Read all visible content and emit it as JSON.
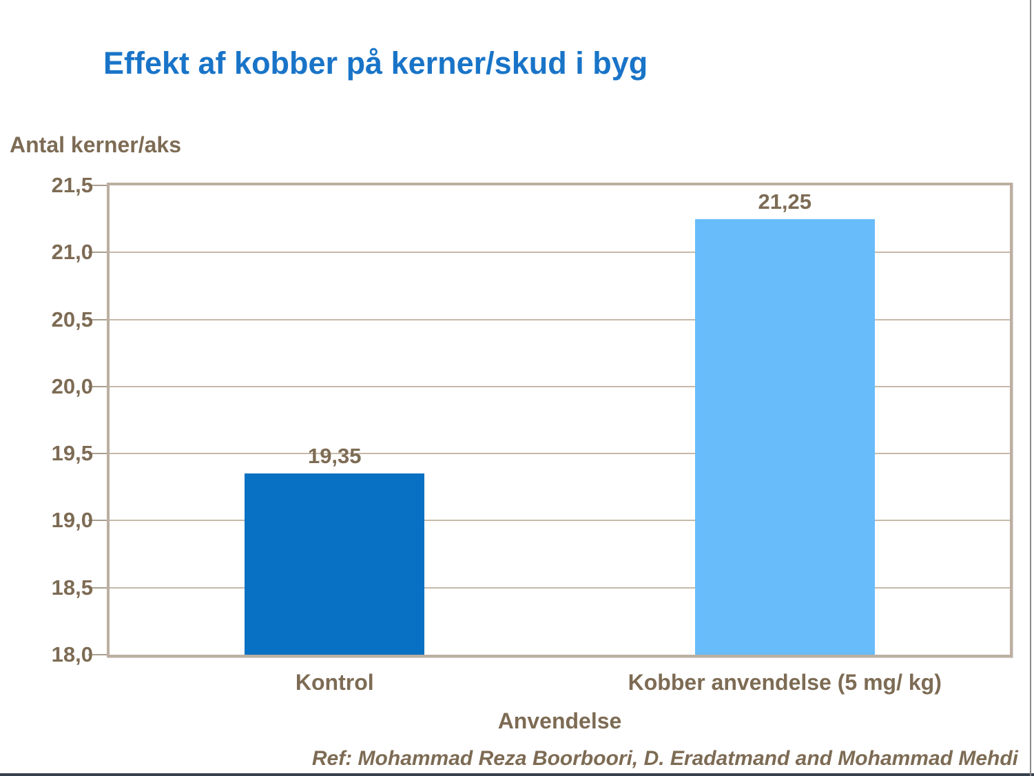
{
  "slide": {
    "title": "Effekt af kobber på kerner/skud i byg",
    "ref_text": "Ref: Mohammad Reza Boorboori, D. Eradatmand and Mohammad Mehdi"
  },
  "chart_data": {
    "type": "bar",
    "title": "Effekt af kobber på kerner/skud i byg",
    "xlabel": "Anvendelse",
    "ylabel": "Antal kerner/aks",
    "categories": [
      "Kontrol",
      "Kobber anvendelse (5 mg/ kg)"
    ],
    "values": [
      19.35,
      21.25
    ],
    "value_labels": [
      "19,35",
      "21,25"
    ],
    "bar_colors": [
      "#0971c3",
      "#68bcfa"
    ],
    "ylim": [
      18.0,
      21.5
    ],
    "ytick_step": 0.5,
    "yticks": [
      21.5,
      21.0,
      20.5,
      20.0,
      19.5,
      19.0,
      18.5,
      18.0
    ],
    "ytick_labels": [
      "21,5",
      "21,0",
      "20,5",
      "20,0",
      "19,5",
      "19,0",
      "18,5",
      "18,0"
    ],
    "grid": true,
    "legend": false,
    "decimal_separator": ","
  },
  "colors": {
    "title_blue": "#1974c8",
    "axis_text_brown": "#7d6b54",
    "gridline_tan": "#c6b9aa",
    "plot_border_tan": "#bcafa1",
    "tick_mark": "#a89e90",
    "bottom_rule": "#37404e",
    "right_edge_rule": "#8a8a8a",
    "background": "#ffffff"
  }
}
